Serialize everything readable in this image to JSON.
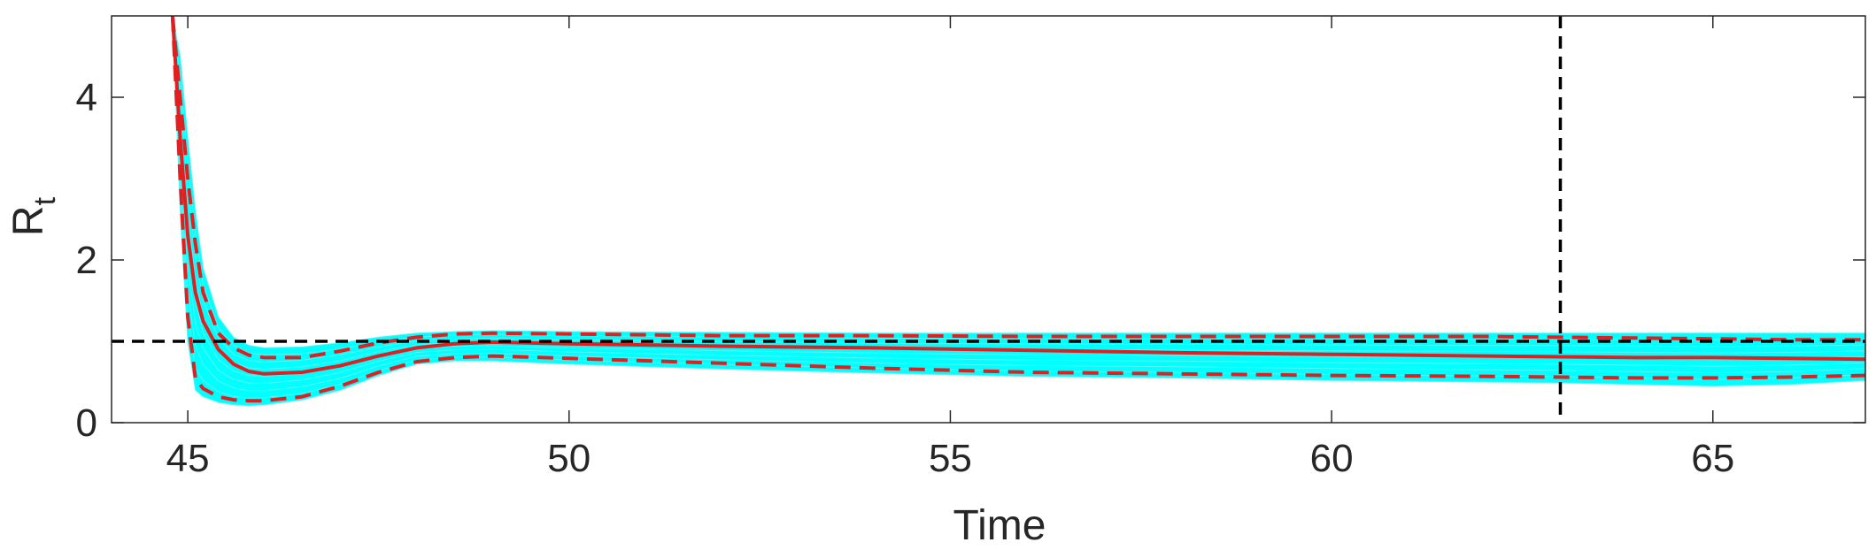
{
  "chart_data": {
    "type": "line",
    "xlabel": "Time",
    "ylabel": "R",
    "ylabel_subscript": "t",
    "xlim": [
      44,
      67
    ],
    "ylim": [
      0,
      5
    ],
    "xticks": [
      45,
      50,
      55,
      60,
      65
    ],
    "yticks": [
      0,
      2,
      4
    ],
    "grid": false,
    "reference_lines": {
      "horizontal_y": 1,
      "vertical_x": 63
    },
    "colors": {
      "ensemble": "#00FFFF",
      "median": "#E02020",
      "bounds": "#E02020",
      "reference": "#000000",
      "axis": "#262626"
    },
    "series": [
      {
        "role": "median",
        "style": "solid",
        "x": [
          44.8,
          44.9,
          45.0,
          45.1,
          45.2,
          45.4,
          45.6,
          45.8,
          46.0,
          46.5,
          47.0,
          47.5,
          48.0,
          48.5,
          49.0,
          50.0,
          52.0,
          54.0,
          56.0,
          58.0,
          60.0,
          62.0,
          63.0,
          64.0,
          65.0,
          66.0,
          67.0
        ],
        "y": [
          5.0,
          3.5,
          2.3,
          1.6,
          1.25,
          0.9,
          0.72,
          0.63,
          0.6,
          0.62,
          0.7,
          0.82,
          0.92,
          0.97,
          0.99,
          0.97,
          0.94,
          0.92,
          0.89,
          0.86,
          0.84,
          0.82,
          0.81,
          0.8,
          0.8,
          0.79,
          0.78
        ]
      },
      {
        "role": "upper-bound",
        "style": "dashed",
        "x": [
          44.8,
          44.9,
          45.0,
          45.1,
          45.2,
          45.4,
          45.6,
          45.8,
          46.0,
          46.5,
          47.0,
          47.5,
          48.0,
          48.5,
          49.0,
          50.0,
          52.0,
          54.0,
          56.0,
          58.0,
          60.0,
          62.0,
          63.0,
          64.0,
          65.0,
          66.0,
          67.0
        ],
        "y": [
          5.0,
          4.0,
          3.0,
          2.2,
          1.6,
          1.1,
          0.92,
          0.83,
          0.8,
          0.8,
          0.88,
          0.98,
          1.05,
          1.09,
          1.1,
          1.09,
          1.07,
          1.07,
          1.06,
          1.06,
          1.06,
          1.06,
          1.05,
          1.04,
          1.03,
          1.02,
          1.02
        ]
      },
      {
        "role": "lower-bound",
        "style": "dashed",
        "x": [
          44.8,
          44.9,
          45.0,
          45.1,
          45.2,
          45.4,
          45.6,
          45.8,
          46.0,
          46.5,
          47.0,
          47.5,
          48.0,
          48.5,
          49.0,
          50.0,
          52.0,
          54.0,
          56.0,
          58.0,
          60.0,
          62.0,
          63.0,
          64.0,
          65.0,
          66.0,
          67.0
        ],
        "y": [
          5.0,
          3.0,
          1.3,
          0.55,
          0.42,
          0.32,
          0.28,
          0.27,
          0.27,
          0.32,
          0.45,
          0.62,
          0.75,
          0.8,
          0.82,
          0.79,
          0.73,
          0.67,
          0.62,
          0.6,
          0.58,
          0.57,
          0.56,
          0.55,
          0.55,
          0.56,
          0.58
        ]
      },
      {
        "role": "ensemble-upper-envelope",
        "style": "band",
        "x": [
          44.8,
          44.9,
          45.0,
          45.1,
          45.2,
          45.4,
          45.6,
          45.8,
          46.0,
          46.5,
          47.0,
          47.5,
          48.0,
          48.5,
          49.0,
          50.0,
          52.0,
          54.0,
          56.0,
          58.0,
          60.0,
          62.0,
          63.0,
          64.0,
          65.0,
          66.0,
          67.0
        ],
        "y": [
          5.0,
          4.5,
          3.5,
          2.6,
          1.9,
          1.3,
          1.05,
          0.95,
          0.92,
          0.93,
          0.98,
          1.05,
          1.1,
          1.12,
          1.13,
          1.12,
          1.11,
          1.1,
          1.1,
          1.1,
          1.1,
          1.1,
          1.1,
          1.1,
          1.1,
          1.1,
          1.1
        ]
      },
      {
        "role": "ensemble-lower-envelope",
        "style": "band",
        "x": [
          44.8,
          44.9,
          45.0,
          45.1,
          45.2,
          45.4,
          45.6,
          45.8,
          46.0,
          46.5,
          47.0,
          47.5,
          48.0,
          48.5,
          49.0,
          50.0,
          52.0,
          54.0,
          56.0,
          58.0,
          60.0,
          62.0,
          63.0,
          64.0,
          65.0,
          66.0,
          67.0
        ],
        "y": [
          5.0,
          2.6,
          1.0,
          0.4,
          0.32,
          0.25,
          0.22,
          0.21,
          0.22,
          0.28,
          0.4,
          0.58,
          0.72,
          0.76,
          0.76,
          0.72,
          0.66,
          0.61,
          0.57,
          0.55,
          0.52,
          0.5,
          0.49,
          0.47,
          0.45,
          0.47,
          0.52
        ]
      }
    ]
  }
}
